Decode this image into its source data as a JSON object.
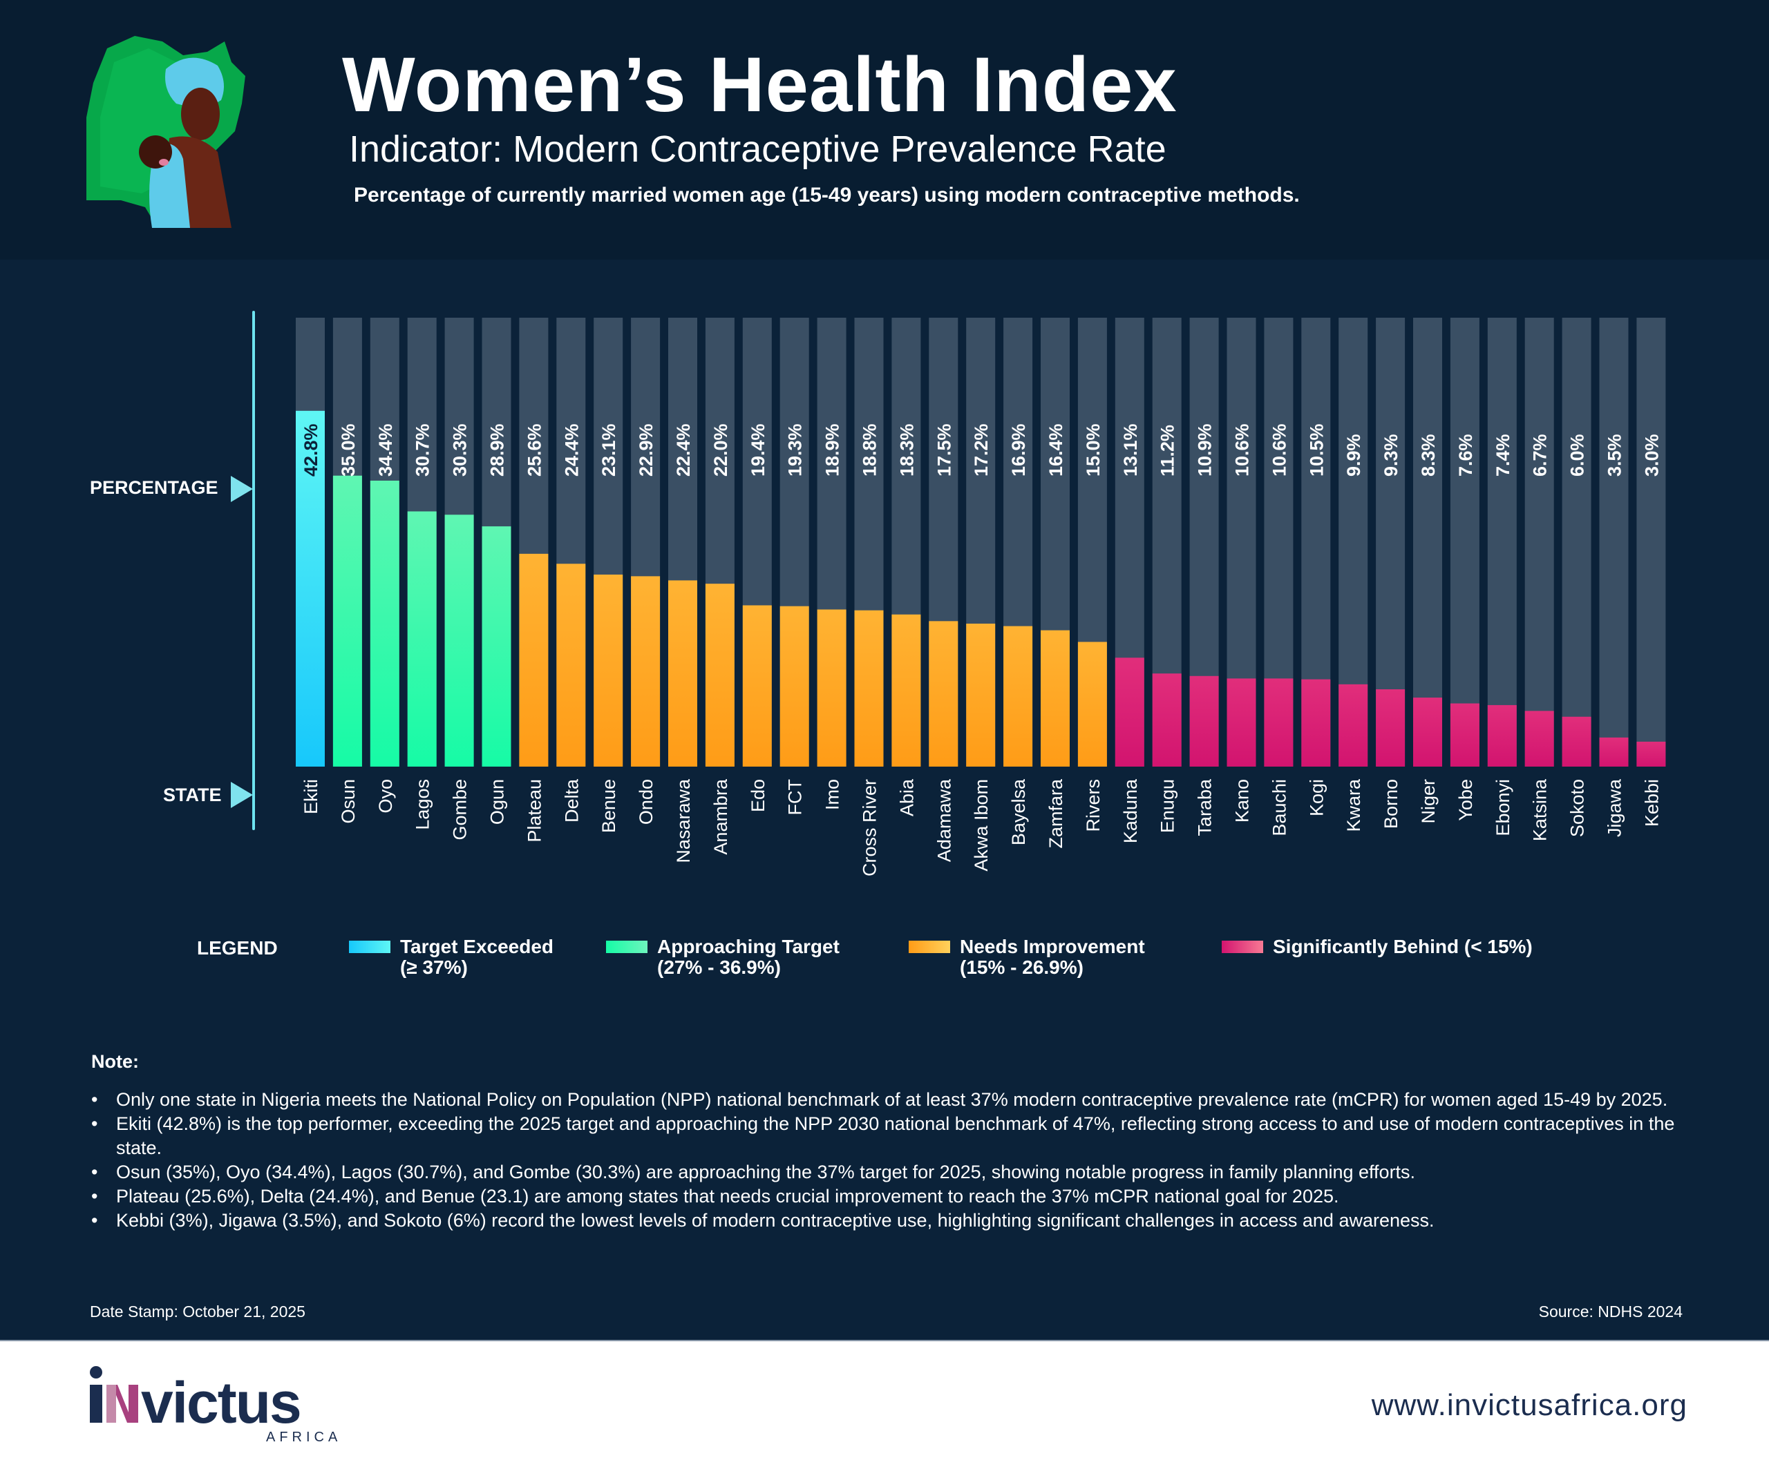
{
  "header": {
    "title": "Women’s Health Index",
    "subtitle": "Indicator: Modern Contraceptive Prevalence Rate",
    "description": "Percentage of currently married women age (15-49 years) using modern contraceptive methods."
  },
  "colors": {
    "background": "#0b2239",
    "header_bg": "#081d31",
    "track": "#3a4f64",
    "target_exceeded": [
      "#5ff6f5",
      "#17c8fb"
    ],
    "approaching_target": [
      "#5ff6b2",
      "#16fba6"
    ],
    "needs_improvement": [
      "#ffb333",
      "#ff9c17"
    ],
    "significantly_behind": [
      "#e12e7b",
      "#d2146f"
    ],
    "axis": "#6ee3ef"
  },
  "chart_data": {
    "type": "bar",
    "title": "Women’s Health Index",
    "subtitle": "Indicator: Modern Contraceptive Prevalence Rate",
    "xlabel": "STATE",
    "ylabel": "PERCENTAGE",
    "ylim": [
      0,
      54
    ],
    "grid": false,
    "legend_position": "bottom",
    "categories": [
      "Ekiti",
      "Osun",
      "Oyo",
      "Lagos",
      "Gombe",
      "Ogun",
      "Plateau",
      "Delta",
      "Benue",
      "Ondo",
      "Nasarawa",
      "Anambra",
      "Edo",
      "FCT",
      "Imo",
      "Cross River",
      "Abia",
      "Adamawa",
      "Akwa Ibom",
      "Bayelsa",
      "Zamfara",
      "Rivers",
      "Kaduna",
      "Enugu",
      "Taraba",
      "Kano",
      "Bauchi",
      "Kogi",
      "Kwara",
      "Borno",
      "Niger",
      "Yobe",
      "Ebonyi",
      "Katsina",
      "Sokoto",
      "Jigawa",
      "Kebbi"
    ],
    "values": [
      42.8,
      35.0,
      34.4,
      30.7,
      30.3,
      28.9,
      25.6,
      24.4,
      23.1,
      22.9,
      22.4,
      22.0,
      19.4,
      19.3,
      18.9,
      18.8,
      18.3,
      17.5,
      17.2,
      16.9,
      16.4,
      15.0,
      13.1,
      11.2,
      10.9,
      10.6,
      10.6,
      10.5,
      9.9,
      9.3,
      8.3,
      7.6,
      7.4,
      6.7,
      6.0,
      3.5,
      3.0
    ],
    "value_labels": [
      "42.8%",
      "35.0%",
      "34.4%",
      "30.7%",
      "30.3%",
      "28.9%",
      "25.6%",
      "24.4%",
      "23.1%",
      "22.9%",
      "22.4%",
      "22.0%",
      "19.4%",
      "19.3%",
      "18.9%",
      "18.8%",
      "18.3%",
      "17.5%",
      "17.2%",
      "16.9%",
      "16.4%",
      "15.0%",
      "13.1%",
      "11.2%",
      "10.9%",
      "10.6%",
      "10.6%",
      "10.5%",
      "9.9%",
      "9.3%",
      "8.3%",
      "7.6%",
      "7.4%",
      "6.7%",
      "6.0%",
      "3.5%",
      "3.0%"
    ],
    "categories_group": [
      "target_exceeded",
      "approaching_target",
      "approaching_target",
      "approaching_target",
      "approaching_target",
      "approaching_target",
      "needs_improvement",
      "needs_improvement",
      "needs_improvement",
      "needs_improvement",
      "needs_improvement",
      "needs_improvement",
      "needs_improvement",
      "needs_improvement",
      "needs_improvement",
      "needs_improvement",
      "needs_improvement",
      "needs_improvement",
      "needs_improvement",
      "needs_improvement",
      "needs_improvement",
      "needs_improvement",
      "significantly_behind",
      "significantly_behind",
      "significantly_behind",
      "significantly_behind",
      "significantly_behind",
      "significantly_behind",
      "significantly_behind",
      "significantly_behind",
      "significantly_behind",
      "significantly_behind",
      "significantly_behind",
      "significantly_behind",
      "significantly_behind",
      "significantly_behind",
      "significantly_behind"
    ]
  },
  "axes": {
    "y_label": "PERCENTAGE",
    "x_label": "STATE"
  },
  "legend": {
    "title": "LEGEND",
    "items": [
      {
        "key": "target_exceeded",
        "line1": "Target Exceeded",
        "line2": "(≥ 37%)"
      },
      {
        "key": "approaching_target",
        "line1": "Approaching Target",
        "line2": "(27% - 36.9%)"
      },
      {
        "key": "needs_improvement",
        "line1": "Needs Improvement",
        "line2": "(15% - 26.9%)"
      },
      {
        "key": "significantly_behind",
        "line1": "Significantly Behind (< 15%)",
        "line2": ""
      }
    ]
  },
  "notes": {
    "title": "Note:",
    "bullet": "•",
    "items": [
      "Only one state in Nigeria meets the National Policy on Population (NPP) national benchmark of at least 37% modern contraceptive prevalence rate (mCPR) for women aged 15-49 by 2025.",
      "Ekiti (42.8%) is the top performer, exceeding the 2025 target and approaching the NPP 2030 national benchmark of 47%, reflecting strong access to and use of modern contraceptives in the state.",
      "Osun (35%), Oyo (34.4%), Lagos (30.7%), and Gombe (30.3%) are approaching the 37% target for 2025, showing notable progress in family planning efforts.",
      "Plateau (25.6%), Delta (24.4%), and Benue (23.1) are among states that needs crucial improvement to reach the 37% mCPR national goal for 2025.",
      "Kebbi (3%), Jigawa (3.5%), and Sokoto (6%) record the lowest levels of modern contraceptive use, highlighting significant challenges in access and awareness."
    ]
  },
  "footer": {
    "date_stamp": "Date Stamp: October 21, 2025",
    "source": "Source: NDHS 2024",
    "logo_text": "invictus",
    "logo_sub": "AFRICA",
    "url": "www.invictusafrica.org",
    "logo_color": "#1b2d4f",
    "logo_accent": "#a8417f"
  }
}
